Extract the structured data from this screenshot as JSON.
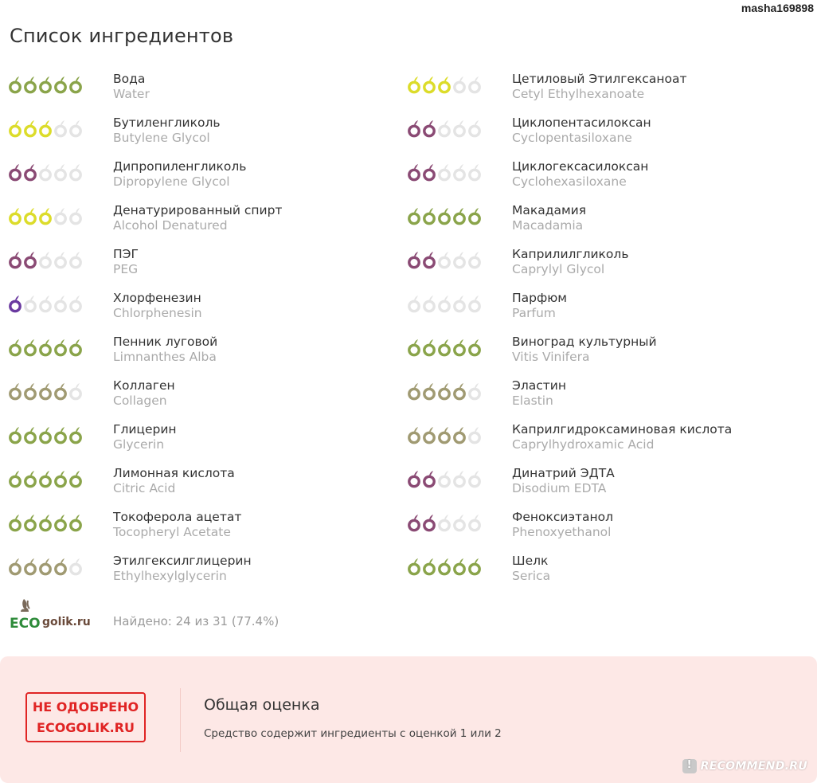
{
  "username": "masha169898",
  "title": "Список ингредиентов",
  "colors": {
    "green": "#8aa44a",
    "olive": "#a09a72",
    "yellow": "#dcdc2a",
    "purple": "#8a4a74",
    "violet": "#6a3aa0",
    "empty": "#e4e4e4"
  },
  "ingredients_left": [
    {
      "ru": "Вода",
      "en": "Water",
      "rating": 5,
      "color": "green"
    },
    {
      "ru": "Бутиленгликоль",
      "en": "Butylene Glycol",
      "rating": 3,
      "color": "yellow"
    },
    {
      "ru": "Дипропиленгликоль",
      "en": "Dipropylene Glycol",
      "rating": 2,
      "color": "purple"
    },
    {
      "ru": "Денатурированный спирт",
      "en": "Alcohol Denatured",
      "rating": 3,
      "color": "yellow"
    },
    {
      "ru": "ПЭГ",
      "en": "PEG",
      "rating": 2,
      "color": "purple"
    },
    {
      "ru": "Хлорфенезин",
      "en": "Chlorphenesin",
      "rating": 1,
      "color": "violet"
    },
    {
      "ru": "Пенник луговой",
      "en": "Limnanthes Alba",
      "rating": 5,
      "color": "green"
    },
    {
      "ru": "Коллаген",
      "en": "Collagen",
      "rating": 4,
      "color": "olive"
    },
    {
      "ru": "Глицерин",
      "en": "Glycerin",
      "rating": 5,
      "color": "green"
    },
    {
      "ru": "Лимонная кислота",
      "en": "Citric Acid",
      "rating": 5,
      "color": "green"
    },
    {
      "ru": "Токоферола ацетат",
      "en": "Tocopheryl Acetate",
      "rating": 5,
      "color": "green"
    },
    {
      "ru": "Этилгексилглицерин",
      "en": "Ethylhexylglycerin",
      "rating": 4,
      "color": "olive"
    }
  ],
  "ingredients_right": [
    {
      "ru": "Цетиловый Этилгексаноат",
      "en": "Cetyl Ethylhexanoate",
      "rating": 3,
      "color": "yellow"
    },
    {
      "ru": "Циклопентасилоксан",
      "en": "Cyclopentasiloxane",
      "rating": 2,
      "color": "purple"
    },
    {
      "ru": "Циклогексасилоксан",
      "en": "Cyclohexasiloxane",
      "rating": 2,
      "color": "purple"
    },
    {
      "ru": "Макадамия",
      "en": "Macadamia",
      "rating": 5,
      "color": "green"
    },
    {
      "ru": "Каприлилгликоль",
      "en": "Caprylyl Glycol",
      "rating": 2,
      "color": "purple"
    },
    {
      "ru": "Парфюм",
      "en": "Parfum",
      "rating": 0,
      "color": "empty"
    },
    {
      "ru": "Виноград культурный",
      "en": "Vitis Vinifera",
      "rating": 5,
      "color": "green"
    },
    {
      "ru": "Эластин",
      "en": "Elastin",
      "rating": 4,
      "color": "olive"
    },
    {
      "ru": "Каприлгидроксаминовая кислота",
      "en": "Caprylhydroxamic Acid",
      "rating": 4,
      "color": "olive"
    },
    {
      "ru": "Динатрий ЭДТА",
      "en": "Disodium EDTA",
      "rating": 2,
      "color": "purple"
    },
    {
      "ru": "Феноксиэтанол",
      "en": "Phenoxyethanol",
      "rating": 2,
      "color": "purple"
    },
    {
      "ru": "Шелк",
      "en": "Serica",
      "rating": 5,
      "color": "green"
    }
  ],
  "logo_text": "ECOgolik.ru",
  "found_text": "Найдено: 24 из 31 (77.4%)",
  "verdict": {
    "stamp_line1": "НЕ ОДОБРЕНО",
    "stamp_line2": "ECOGOLIK.RU",
    "title": "Общая оценка",
    "description": "Средство содержит ингредиенты с оценкой 1 или 2"
  },
  "watermark": "RECOMMEND.RU"
}
